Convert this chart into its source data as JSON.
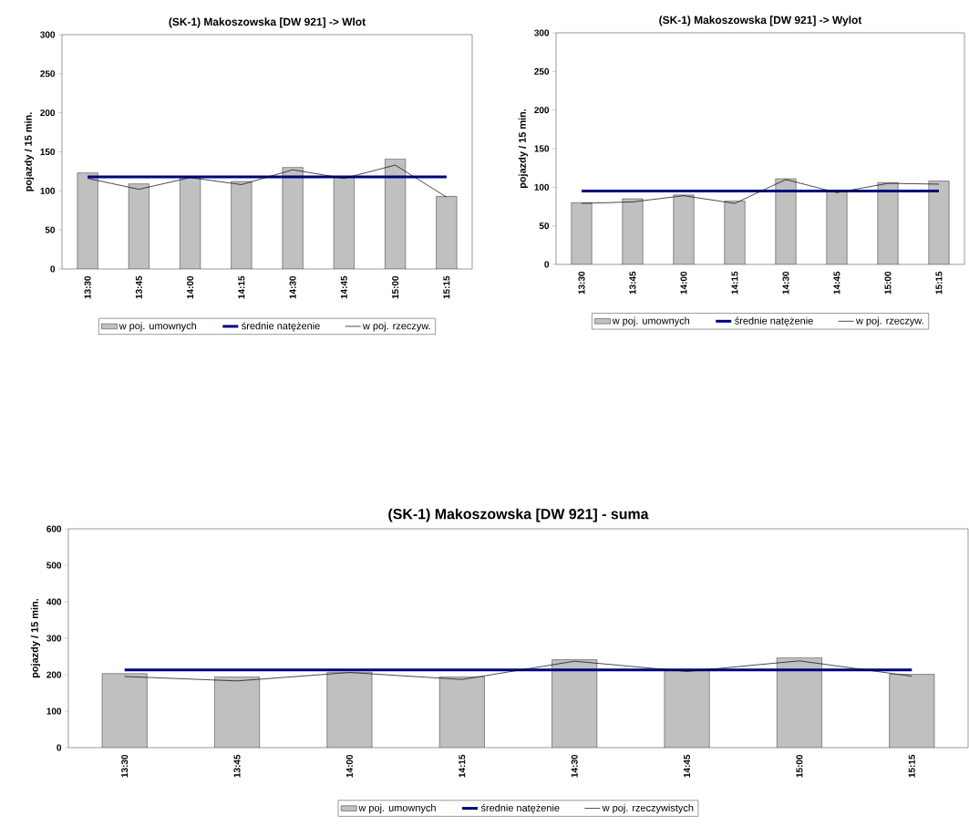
{
  "chart_data": [
    {
      "type": "bar",
      "title": "(SK-1) Makoszowska [DW 921] -> Wlot",
      "ylabel": "pojazdy / 15 min.",
      "categories": [
        "13:30",
        "13:45",
        "14:00",
        "14:15",
        "14:30",
        "14:45",
        "15:00",
        "15:15"
      ],
      "ylim": [
        0,
        300
      ],
      "yticks": [
        0,
        50,
        100,
        150,
        200,
        250,
        300
      ],
      "legend": "bottom",
      "marker": "none",
      "series": [
        {
          "name": "w poj. umownych",
          "color": "#c0c0c0",
          "values": [
            123,
            109,
            117,
            112,
            130,
            118,
            141,
            93
          ]
        },
        {
          "name": "średnie natężenie",
          "type": "line",
          "color": "#000080",
          "values": [
            118,
            118,
            118,
            118,
            118,
            118,
            118,
            118
          ]
        },
        {
          "name": "w poj. rzeczyw.",
          "type": "line",
          "color": "#000000",
          "values": [
            116,
            102,
            117,
            108,
            127,
            116,
            133,
            92
          ]
        }
      ]
    },
    {
      "type": "bar",
      "title": "(SK-1) Makoszowska [DW 921] -> Wylot",
      "ylabel": "pojazdy / 15 min.",
      "categories": [
        "13:30",
        "13:45",
        "14:00",
        "14:15",
        "14:30",
        "14:45",
        "15:00",
        "15:15"
      ],
      "ylim": [
        0,
        300
      ],
      "yticks": [
        0,
        50,
        100,
        150,
        200,
        250,
        300
      ],
      "legend": "bottom",
      "marker": "none",
      "series": [
        {
          "name": "w poj. umownych",
          "color": "#c0c0c0",
          "values": [
            80,
            85,
            90,
            82,
            111,
            95,
            106,
            108
          ]
        },
        {
          "name": "średnie natężenie",
          "type": "line",
          "color": "#000080",
          "values": [
            95,
            95,
            95,
            95,
            95,
            95,
            95,
            95
          ]
        },
        {
          "name": "w poj. rzeczyw.",
          "type": "line",
          "color": "#000000",
          "values": [
            79,
            81,
            89,
            79,
            110,
            93,
            105,
            104
          ]
        }
      ]
    },
    {
      "type": "bar",
      "title": "(SK-1) Makoszowska [DW 921] - suma",
      "ylabel": "pojazdy / 15 min.",
      "categories": [
        "13:30",
        "13:45",
        "14:00",
        "14:15",
        "14:30",
        "14:45",
        "15:00",
        "15:15"
      ],
      "ylim": [
        0,
        600
      ],
      "yticks": [
        0,
        100,
        200,
        300,
        400,
        500,
        600
      ],
      "legend": "bottom",
      "marker": "none",
      "series": [
        {
          "name": "w poj. umownych",
          "color": "#c0c0c0",
          "values": [
            203,
            194,
            207,
            194,
            241,
            213,
            247,
            201
          ]
        },
        {
          "name": "średnie natężenie",
          "type": "line",
          "color": "#000080",
          "values": [
            213,
            213,
            213,
            213,
            213,
            213,
            213,
            213
          ]
        },
        {
          "name": "w poj. rzeczywistych",
          "type": "line",
          "color": "#000000",
          "values": [
            195,
            183,
            206,
            187,
            237,
            209,
            238,
            196
          ]
        }
      ]
    }
  ]
}
